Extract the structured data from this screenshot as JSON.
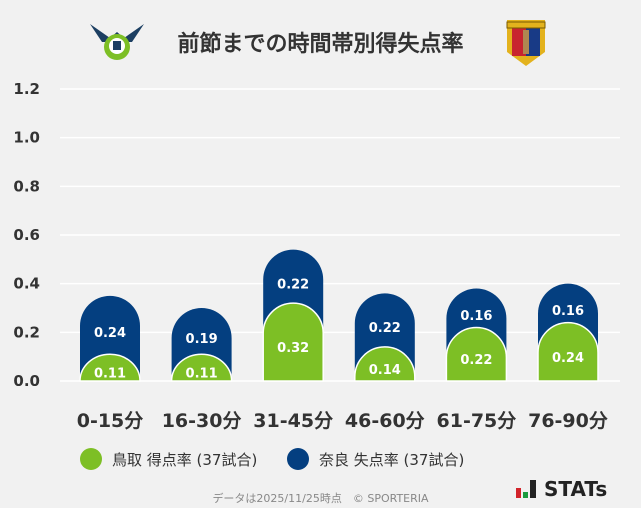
{
  "title": "前節までの時間帯別得失点率",
  "logos": {
    "home": "鳥取 emblem",
    "away": "奈良 emblem"
  },
  "colors": {
    "home": "#7dbf25",
    "away": "#043f80",
    "grid": "#ffffff",
    "background": "#f1f1f1"
  },
  "chart_data": {
    "type": "bar",
    "stacked": true,
    "title": "前節までの時間帯別得失点率",
    "categories": [
      "0-15分",
      "16-30分",
      "31-45分",
      "46-60分",
      "61-75分",
      "76-90分"
    ],
    "series": [
      {
        "name": "鳥取 得点率 (37試合)",
        "values": [
          0.11,
          0.11,
          0.32,
          0.14,
          0.22,
          0.24
        ],
        "color": "#7dbf25"
      },
      {
        "name": "奈良 失点率 (37試合)",
        "values": [
          0.24,
          0.19,
          0.22,
          0.22,
          0.16,
          0.16
        ],
        "color": "#043f80"
      }
    ],
    "yticks": [
      "0.0",
      "0.2",
      "0.4",
      "0.6",
      "0.8",
      "1.0",
      "1.2"
    ],
    "ylim": [
      0,
      1.2
    ],
    "grid": true,
    "legend": "bottom"
  },
  "footer": "データは2025/11/25時点　© SPORTERIA",
  "brand": "STATs"
}
